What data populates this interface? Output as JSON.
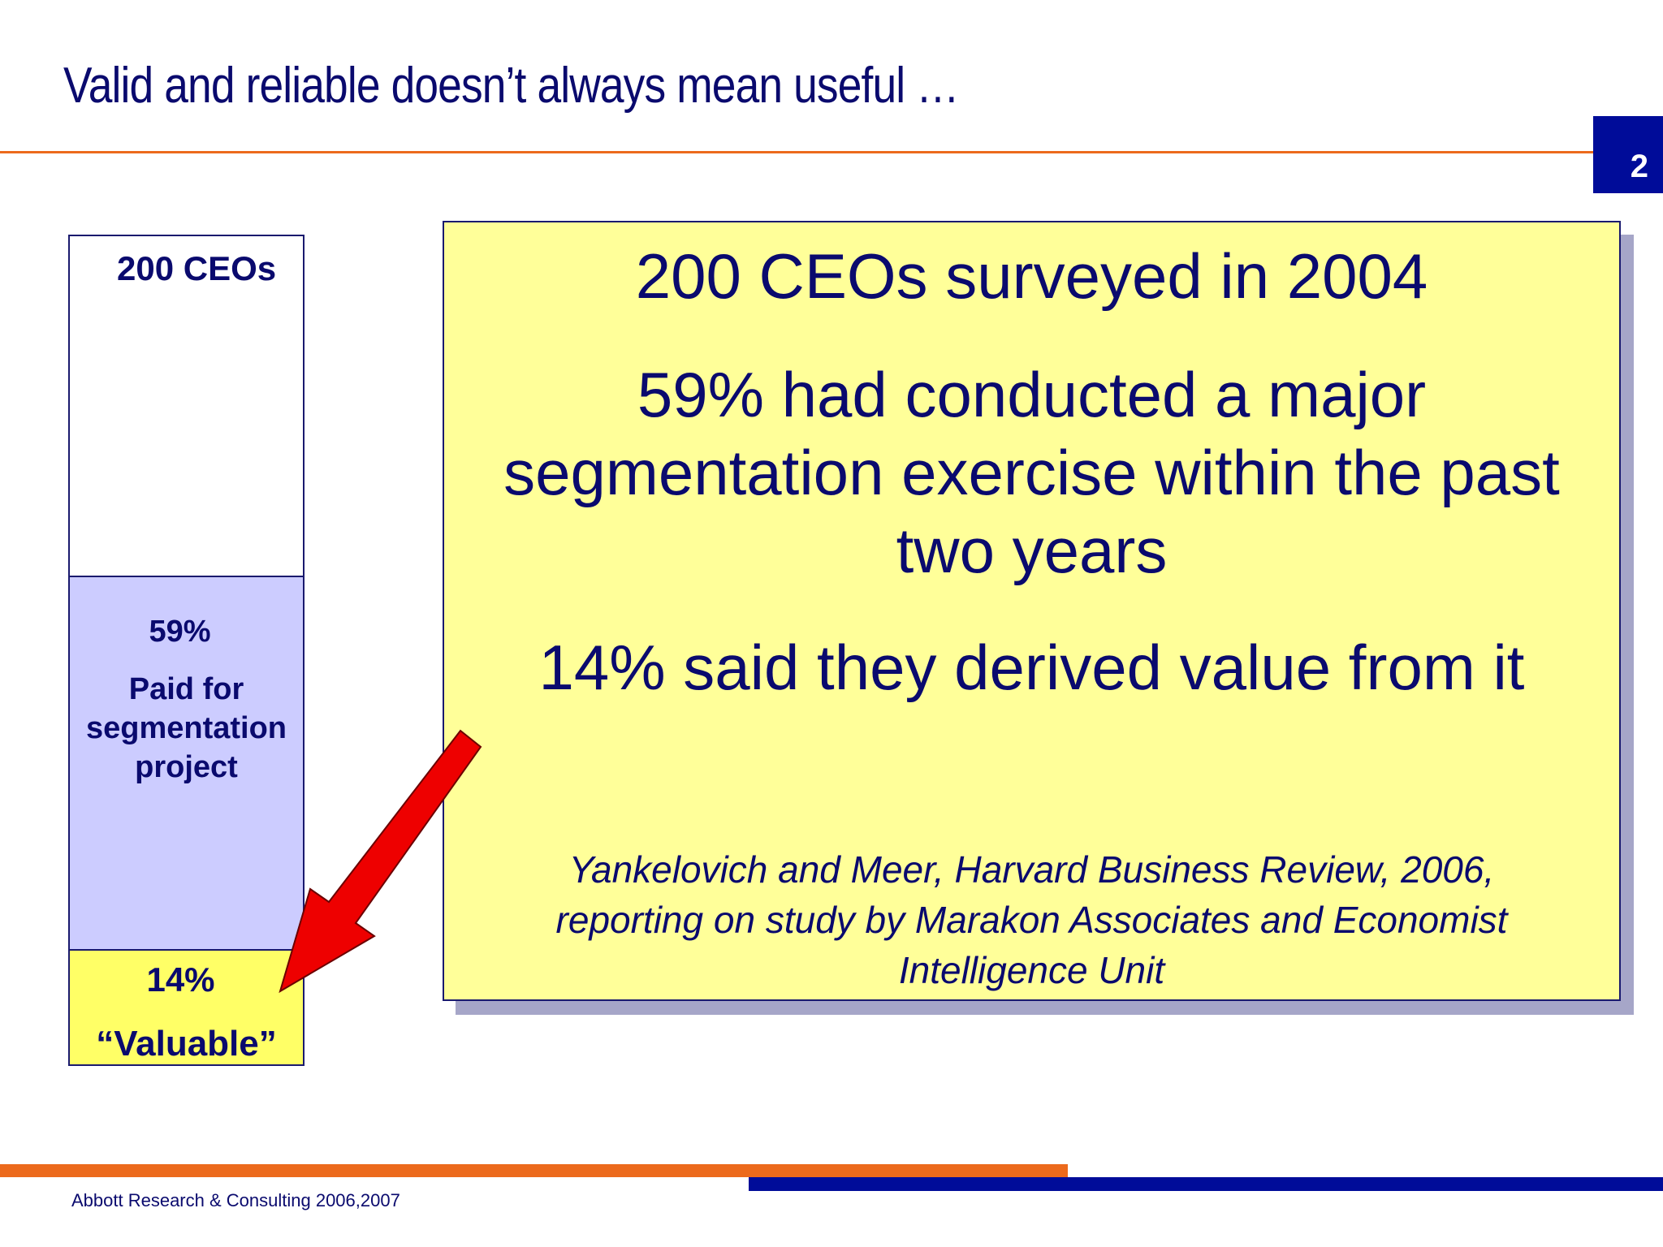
{
  "slide": {
    "title": "Valid and reliable doesn’t always mean useful …",
    "page_number": "2",
    "footer": "Abbott Research & Consulting 2006,2007"
  },
  "bar": {
    "total_label": "200 CEOs",
    "paid_pct": "59%",
    "paid_desc_lines": [
      "Paid for",
      "segmentation",
      "project"
    ],
    "valuable_pct": "14%",
    "valuable_desc": "“Valuable”",
    "fill_colors": {
      "total": "#ffffff",
      "paid": "#ccccff",
      "valuable": "#ffff66"
    }
  },
  "info": {
    "line1": "200 CEOs surveyed in 2004",
    "line2_parts": [
      "59% had conducted a major",
      "segmentation exercise within the past",
      "two years"
    ],
    "line3": "14% said they derived value from it",
    "citation_lines": [
      "Yankelovich and Meer, Harvard Business Review, 2006,",
      "reporting on study by Marakon Associates and Economist",
      "Intelligence Unit"
    ],
    "background_color": "#ffff99"
  },
  "colors": {
    "accent_orange": "#ec6a1c",
    "accent_blue": "#000c99",
    "text_navy": "#0a0a6e",
    "arrow_red": "#ee0000"
  },
  "icons": {
    "arrow": "red-pointer-arrow-icon"
  }
}
